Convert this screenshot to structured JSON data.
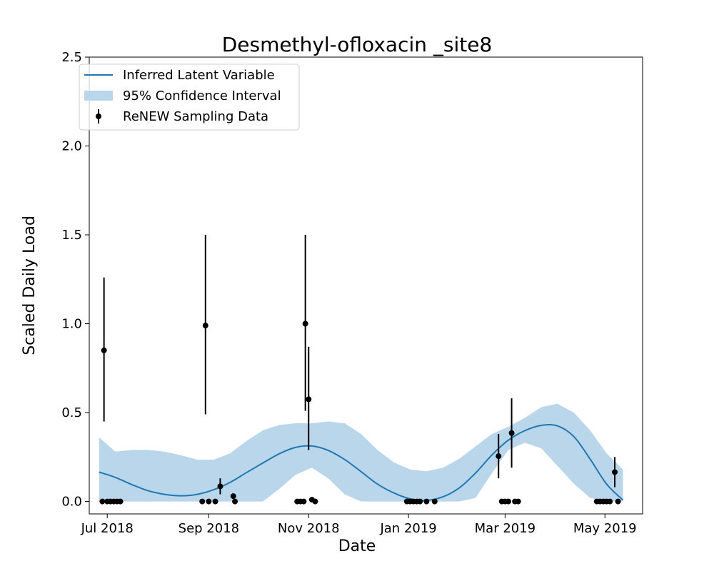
{
  "chart_data": {
    "type": "line",
    "title": "Desmethyl-ofloxacin _site8",
    "xlabel": "Date",
    "ylabel": "Scaled Daily Load",
    "xlim": [
      "2018-06-20",
      "2019-05-24"
    ],
    "ylim": [
      -0.07,
      2.5
    ],
    "yticks": [
      0.0,
      0.5,
      1.0,
      1.5,
      2.0,
      2.5
    ],
    "ytick_labels": [
      "0.0",
      "0.5",
      "1.0",
      "1.5",
      "2.0",
      "2.5"
    ],
    "xticks": [
      "2018-07-01",
      "2018-09-01",
      "2018-11-01",
      "2019-01-01",
      "2019-03-01",
      "2019-05-01"
    ],
    "xtick_labels": [
      "Jul 2018",
      "Sep 2018",
      "Nov 2018",
      "Jan 2019",
      "Mar 2019",
      "May 2019"
    ],
    "legend": {
      "position": "upper-left",
      "entries": [
        "Inferred Latent Variable",
        "95% Confidence Interval",
        "ReNEW Sampling Data"
      ]
    },
    "colors": {
      "line": "#1f77b4",
      "band": "#bad6ea",
      "points": "#000000"
    },
    "latent": {
      "name": "Inferred Latent Variable",
      "x": [
        "2018-06-26",
        "2018-07-06",
        "2018-07-16",
        "2018-07-26",
        "2018-08-05",
        "2018-08-15",
        "2018-08-25",
        "2018-09-04",
        "2018-09-14",
        "2018-09-24",
        "2018-10-04",
        "2018-10-14",
        "2018-10-24",
        "2018-11-03",
        "2018-11-13",
        "2018-11-23",
        "2018-12-03",
        "2018-12-13",
        "2018-12-23",
        "2019-01-02",
        "2019-01-12",
        "2019-01-22",
        "2019-02-01",
        "2019-02-11",
        "2019-02-21",
        "2019-03-03",
        "2019-03-13",
        "2019-03-23",
        "2019-04-02",
        "2019-04-12",
        "2019-04-22",
        "2019-05-02",
        "2019-05-12"
      ],
      "y": [
        0.165,
        0.135,
        0.095,
        0.06,
        0.04,
        0.032,
        0.04,
        0.066,
        0.107,
        0.162,
        0.216,
        0.268,
        0.304,
        0.312,
        0.287,
        0.236,
        0.168,
        0.098,
        0.048,
        0.015,
        0.006,
        0.026,
        0.076,
        0.16,
        0.262,
        0.345,
        0.398,
        0.428,
        0.425,
        0.365,
        0.238,
        0.098,
        0.008
      ]
    },
    "confidence_interval": {
      "name": "95% Confidence Interval",
      "x": [
        "2018-06-26",
        "2018-07-06",
        "2018-07-16",
        "2018-07-26",
        "2018-08-05",
        "2018-08-15",
        "2018-08-25",
        "2018-09-04",
        "2018-09-14",
        "2018-09-24",
        "2018-10-04",
        "2018-10-14",
        "2018-10-24",
        "2018-11-03",
        "2018-11-13",
        "2018-11-23",
        "2018-12-03",
        "2018-12-13",
        "2018-12-23",
        "2019-01-02",
        "2019-01-12",
        "2019-01-22",
        "2019-02-01",
        "2019-02-11",
        "2019-02-21",
        "2019-03-03",
        "2019-03-13",
        "2019-03-23",
        "2019-04-02",
        "2019-04-12",
        "2019-04-22",
        "2019-05-02",
        "2019-05-12"
      ],
      "lower": [
        0.0,
        0.0,
        0.0,
        0.0,
        0.0,
        0.0,
        0.0,
        0.0,
        0.0,
        0.0,
        0.0,
        0.07,
        0.15,
        0.19,
        0.13,
        0.04,
        0.0,
        0.0,
        0.0,
        0.0,
        0.0,
        0.0,
        0.0,
        0.02,
        0.16,
        0.29,
        0.33,
        0.3,
        0.2,
        0.1,
        0.02,
        0.0,
        0.0
      ],
      "upper": [
        0.36,
        0.28,
        0.29,
        0.29,
        0.28,
        0.26,
        0.235,
        0.235,
        0.27,
        0.34,
        0.4,
        0.43,
        0.44,
        0.44,
        0.45,
        0.44,
        0.38,
        0.29,
        0.22,
        0.18,
        0.17,
        0.19,
        0.24,
        0.31,
        0.38,
        0.42,
        0.47,
        0.53,
        0.55,
        0.5,
        0.4,
        0.27,
        0.18
      ]
    },
    "samples": {
      "name": "ReNEW Sampling Data",
      "points": [
        {
          "x": "2018-06-28",
          "y": 0.0
        },
        {
          "x": "2018-06-29",
          "y": 0.85,
          "lo": 0.45,
          "hi": 1.26
        },
        {
          "x": "2018-07-01",
          "y": 0.0
        },
        {
          "x": "2018-07-03",
          "y": 0.0
        },
        {
          "x": "2018-07-05",
          "y": 0.0
        },
        {
          "x": "2018-07-07",
          "y": 0.0
        },
        {
          "x": "2018-07-09",
          "y": 0.0
        },
        {
          "x": "2018-08-28",
          "y": 0.0
        },
        {
          "x": "2018-08-30",
          "y": 0.99,
          "lo": 0.49,
          "hi": 1.5
        },
        {
          "x": "2018-09-01",
          "y": 0.0
        },
        {
          "x": "2018-09-05",
          "y": 0.0
        },
        {
          "x": "2018-09-08",
          "y": 0.085,
          "lo": 0.04,
          "hi": 0.13
        },
        {
          "x": "2018-09-16",
          "y": 0.03
        },
        {
          "x": "2018-09-17",
          "y": 0.0
        },
        {
          "x": "2018-10-25",
          "y": 0.0
        },
        {
          "x": "2018-10-27",
          "y": 0.0
        },
        {
          "x": "2018-10-29",
          "y": 0.0
        },
        {
          "x": "2018-10-30",
          "y": 1.0,
          "lo": 0.51,
          "hi": 1.5
        },
        {
          "x": "2018-11-01",
          "y": 0.575,
          "lo": 0.29,
          "hi": 0.87
        },
        {
          "x": "2018-11-03",
          "y": 0.01
        },
        {
          "x": "2018-11-05",
          "y": 0.0
        },
        {
          "x": "2018-12-31",
          "y": 0.0
        },
        {
          "x": "2019-01-02",
          "y": 0.0
        },
        {
          "x": "2019-01-04",
          "y": 0.0
        },
        {
          "x": "2019-01-06",
          "y": 0.0
        },
        {
          "x": "2019-01-08",
          "y": 0.0
        },
        {
          "x": "2019-01-12",
          "y": 0.0
        },
        {
          "x": "2019-01-17",
          "y": 0.0
        },
        {
          "x": "2019-02-25",
          "y": 0.255,
          "lo": 0.13,
          "hi": 0.38
        },
        {
          "x": "2019-02-27",
          "y": 0.0
        },
        {
          "x": "2019-03-01",
          "y": 0.0
        },
        {
          "x": "2019-03-03",
          "y": 0.0
        },
        {
          "x": "2019-03-05",
          "y": 0.385,
          "lo": 0.19,
          "hi": 0.58
        },
        {
          "x": "2019-03-07",
          "y": 0.0
        },
        {
          "x": "2019-03-09",
          "y": 0.0
        },
        {
          "x": "2019-04-26",
          "y": 0.0
        },
        {
          "x": "2019-04-28",
          "y": 0.0
        },
        {
          "x": "2019-04-30",
          "y": 0.0
        },
        {
          "x": "2019-05-02",
          "y": 0.0
        },
        {
          "x": "2019-05-04",
          "y": 0.0
        },
        {
          "x": "2019-05-07",
          "y": 0.165,
          "lo": 0.08,
          "hi": 0.25
        },
        {
          "x": "2019-05-09",
          "y": 0.0
        }
      ]
    }
  }
}
